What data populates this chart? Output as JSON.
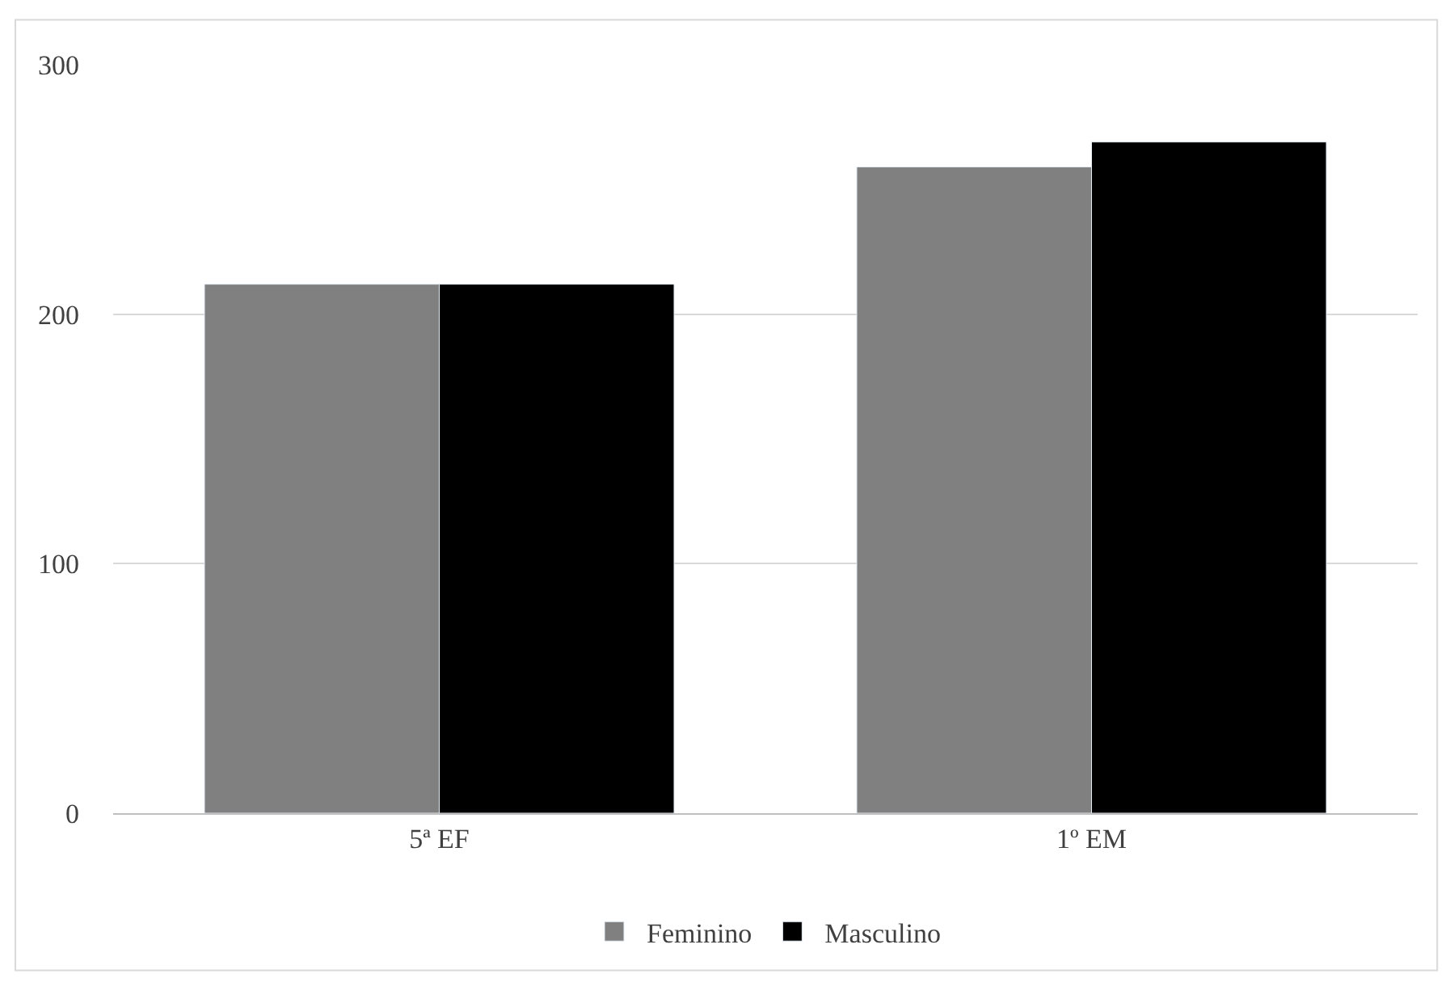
{
  "chart_data": {
    "type": "bar",
    "categories": [
      "5ª EF",
      "1º EM"
    ],
    "series": [
      {
        "name": "Feminino",
        "color": "#808080",
        "values": [
          212,
          259
        ]
      },
      {
        "name": "Masculino",
        "color": "#000000",
        "values": [
          212,
          269
        ]
      }
    ],
    "ylim": [
      0,
      300
    ],
    "yticks": [
      0,
      100,
      200,
      300
    ],
    "grid": "y",
    "legend": "bottom"
  }
}
